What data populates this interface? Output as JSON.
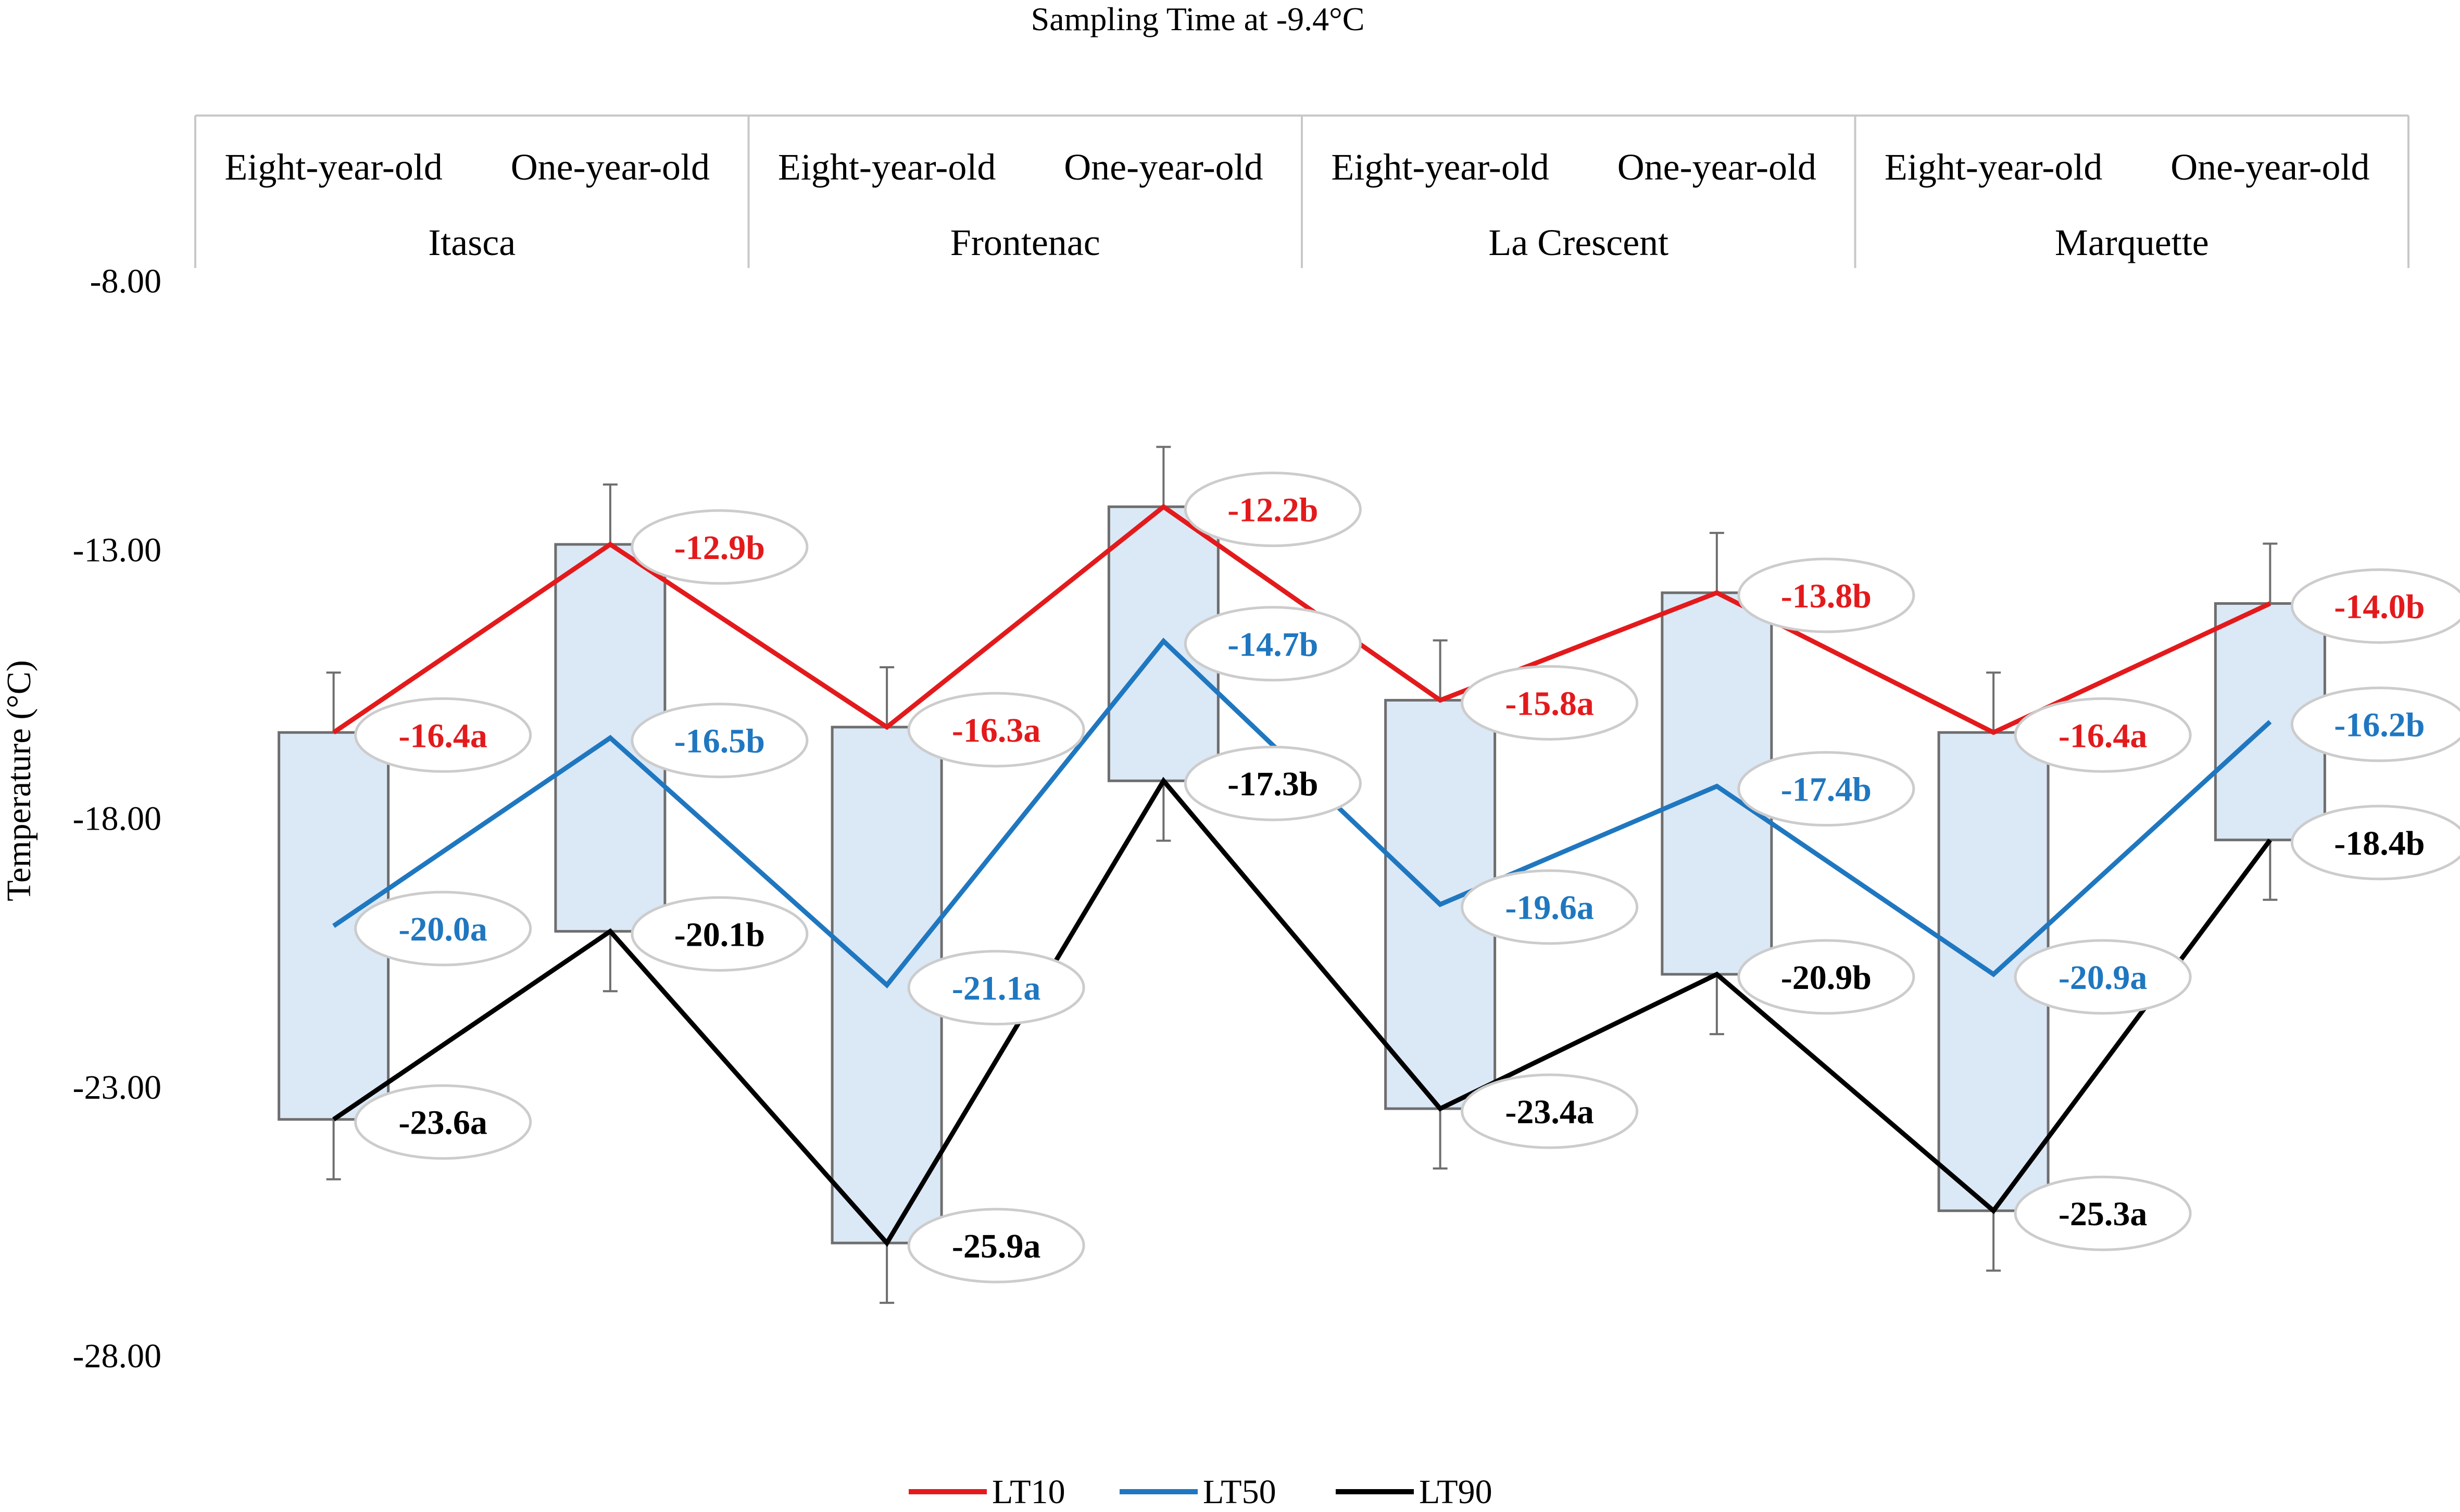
{
  "chart_data": {
    "type": "box",
    "title": "Sampling Time at -9.4°C",
    "ylabel": "Temperature (°C)",
    "ylim": [
      -28,
      -8
    ],
    "yticks": [
      "-8.00",
      "-13.00",
      "-18.00",
      "-23.00",
      "-28.00"
    ],
    "groups": [
      "Itasca",
      "Frontenac",
      "La Crescent",
      "Marquette"
    ],
    "ages": [
      "Eight-year-old",
      "One-year-old"
    ],
    "series": [
      {
        "name": "LT10",
        "color": "#e31a1c",
        "values": [
          -16.4,
          -12.9,
          -16.3,
          -12.2,
          -15.8,
          -13.8,
          -16.4,
          -14.0
        ],
        "labels": [
          "-16.4a",
          "-12.9b",
          "-16.3a",
          "-12.2b",
          "-15.8a",
          "-13.8b",
          "-16.4a",
          "-14.0b"
        ]
      },
      {
        "name": "LT50",
        "color": "#1f77c0",
        "values": [
          -20.0,
          -16.5,
          -21.1,
          -14.7,
          -19.6,
          -17.4,
          -20.9,
          -16.2
        ],
        "labels": [
          "-20.0a",
          "-16.5b",
          "-21.1a",
          "-14.7b",
          "-19.6a",
          "-17.4b",
          "-20.9a",
          "-16.2b"
        ]
      },
      {
        "name": "LT90",
        "color": "#000000",
        "values": [
          -23.6,
          -20.1,
          -25.9,
          -17.3,
          -23.4,
          -20.9,
          -25.3,
          -18.4
        ],
        "labels": [
          "-23.6a",
          "-20.1b",
          "-25.9a",
          "-17.3b",
          "-23.4a",
          "-20.9b",
          "-25.3a",
          "-18.4b"
        ]
      }
    ],
    "box_fill": "#dbe8f6",
    "legend_position": "bottom-center",
    "grid": false
  }
}
